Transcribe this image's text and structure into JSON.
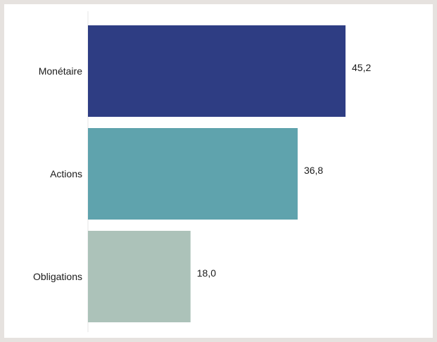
{
  "chart_data": {
    "type": "bar",
    "orientation": "horizontal",
    "title": "",
    "xlabel": "",
    "ylabel": "",
    "categories": [
      "Monétaire",
      "Actions",
      "Obligations"
    ],
    "values": [
      45.2,
      36.8,
      18.0
    ],
    "value_labels": [
      "45,2",
      "36,8",
      "18,0"
    ],
    "colors": [
      "#2e3d83",
      "#5fa3ad",
      "#acc2b9"
    ],
    "xlim": [
      0,
      46
    ],
    "grid": false,
    "legend": "none"
  }
}
